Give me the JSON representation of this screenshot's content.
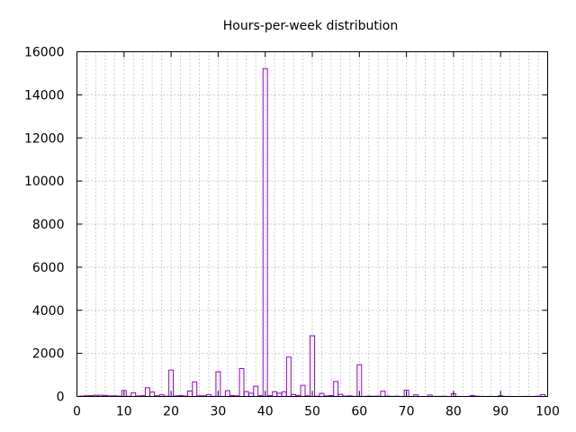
{
  "chart_data": {
    "type": "bar",
    "title": "Hours-per-week distribution",
    "xlabel": "",
    "ylabel": "",
    "xlim": [
      0,
      100
    ],
    "ylim": [
      0,
      16000
    ],
    "xticks": [
      0,
      10,
      20,
      30,
      40,
      50,
      60,
      70,
      80,
      90,
      100
    ],
    "yticks": [
      0,
      2000,
      4000,
      6000,
      8000,
      10000,
      12000,
      14000,
      16000
    ],
    "grid": true,
    "bar_color": "#9400d3",
    "x": [
      1,
      2,
      3,
      4,
      5,
      6,
      7,
      8,
      9,
      10,
      11,
      12,
      13,
      14,
      15,
      16,
      17,
      18,
      19,
      20,
      21,
      22,
      23,
      24,
      25,
      26,
      27,
      28,
      29,
      30,
      31,
      32,
      33,
      34,
      35,
      36,
      37,
      38,
      39,
      40,
      41,
      42,
      43,
      44,
      45,
      46,
      47,
      48,
      49,
      50,
      51,
      52,
      53,
      54,
      55,
      56,
      57,
      58,
      59,
      60,
      61,
      62,
      63,
      64,
      65,
      66,
      67,
      68,
      69,
      70,
      71,
      72,
      73,
      74,
      75,
      76,
      77,
      78,
      79,
      80,
      81,
      82,
      83,
      84,
      85,
      86,
      87,
      88,
      89,
      90,
      91,
      92,
      93,
      94,
      95,
      96,
      97,
      98,
      99
    ],
    "values": [
      20,
      32,
      39,
      54,
      60,
      46,
      26,
      29,
      18,
      278,
      11,
      173,
      23,
      34,
      404,
      205,
      29,
      75,
      14,
      1224,
      24,
      44,
      21,
      252,
      674,
      30,
      30,
      86,
      7,
      1149,
      5,
      266,
      39,
      28,
      1297,
      220,
      149,
      476,
      38,
      15217,
      36,
      219,
      151,
      212,
      1824,
      82,
      49,
      517,
      29,
      2819,
      13,
      145,
      25,
      41,
      694,
      97,
      17,
      28,
      5,
      1475,
      2,
      18,
      10,
      14,
      244,
      17,
      4,
      12,
      1,
      291,
      1,
      71,
      2,
      1,
      66,
      3,
      6,
      8,
      1,
      133,
      3,
      1,
      1,
      45,
      13,
      2,
      1,
      3,
      0,
      29,
      3,
      1,
      0,
      0,
      2,
      5,
      2,
      15,
      85
    ]
  }
}
